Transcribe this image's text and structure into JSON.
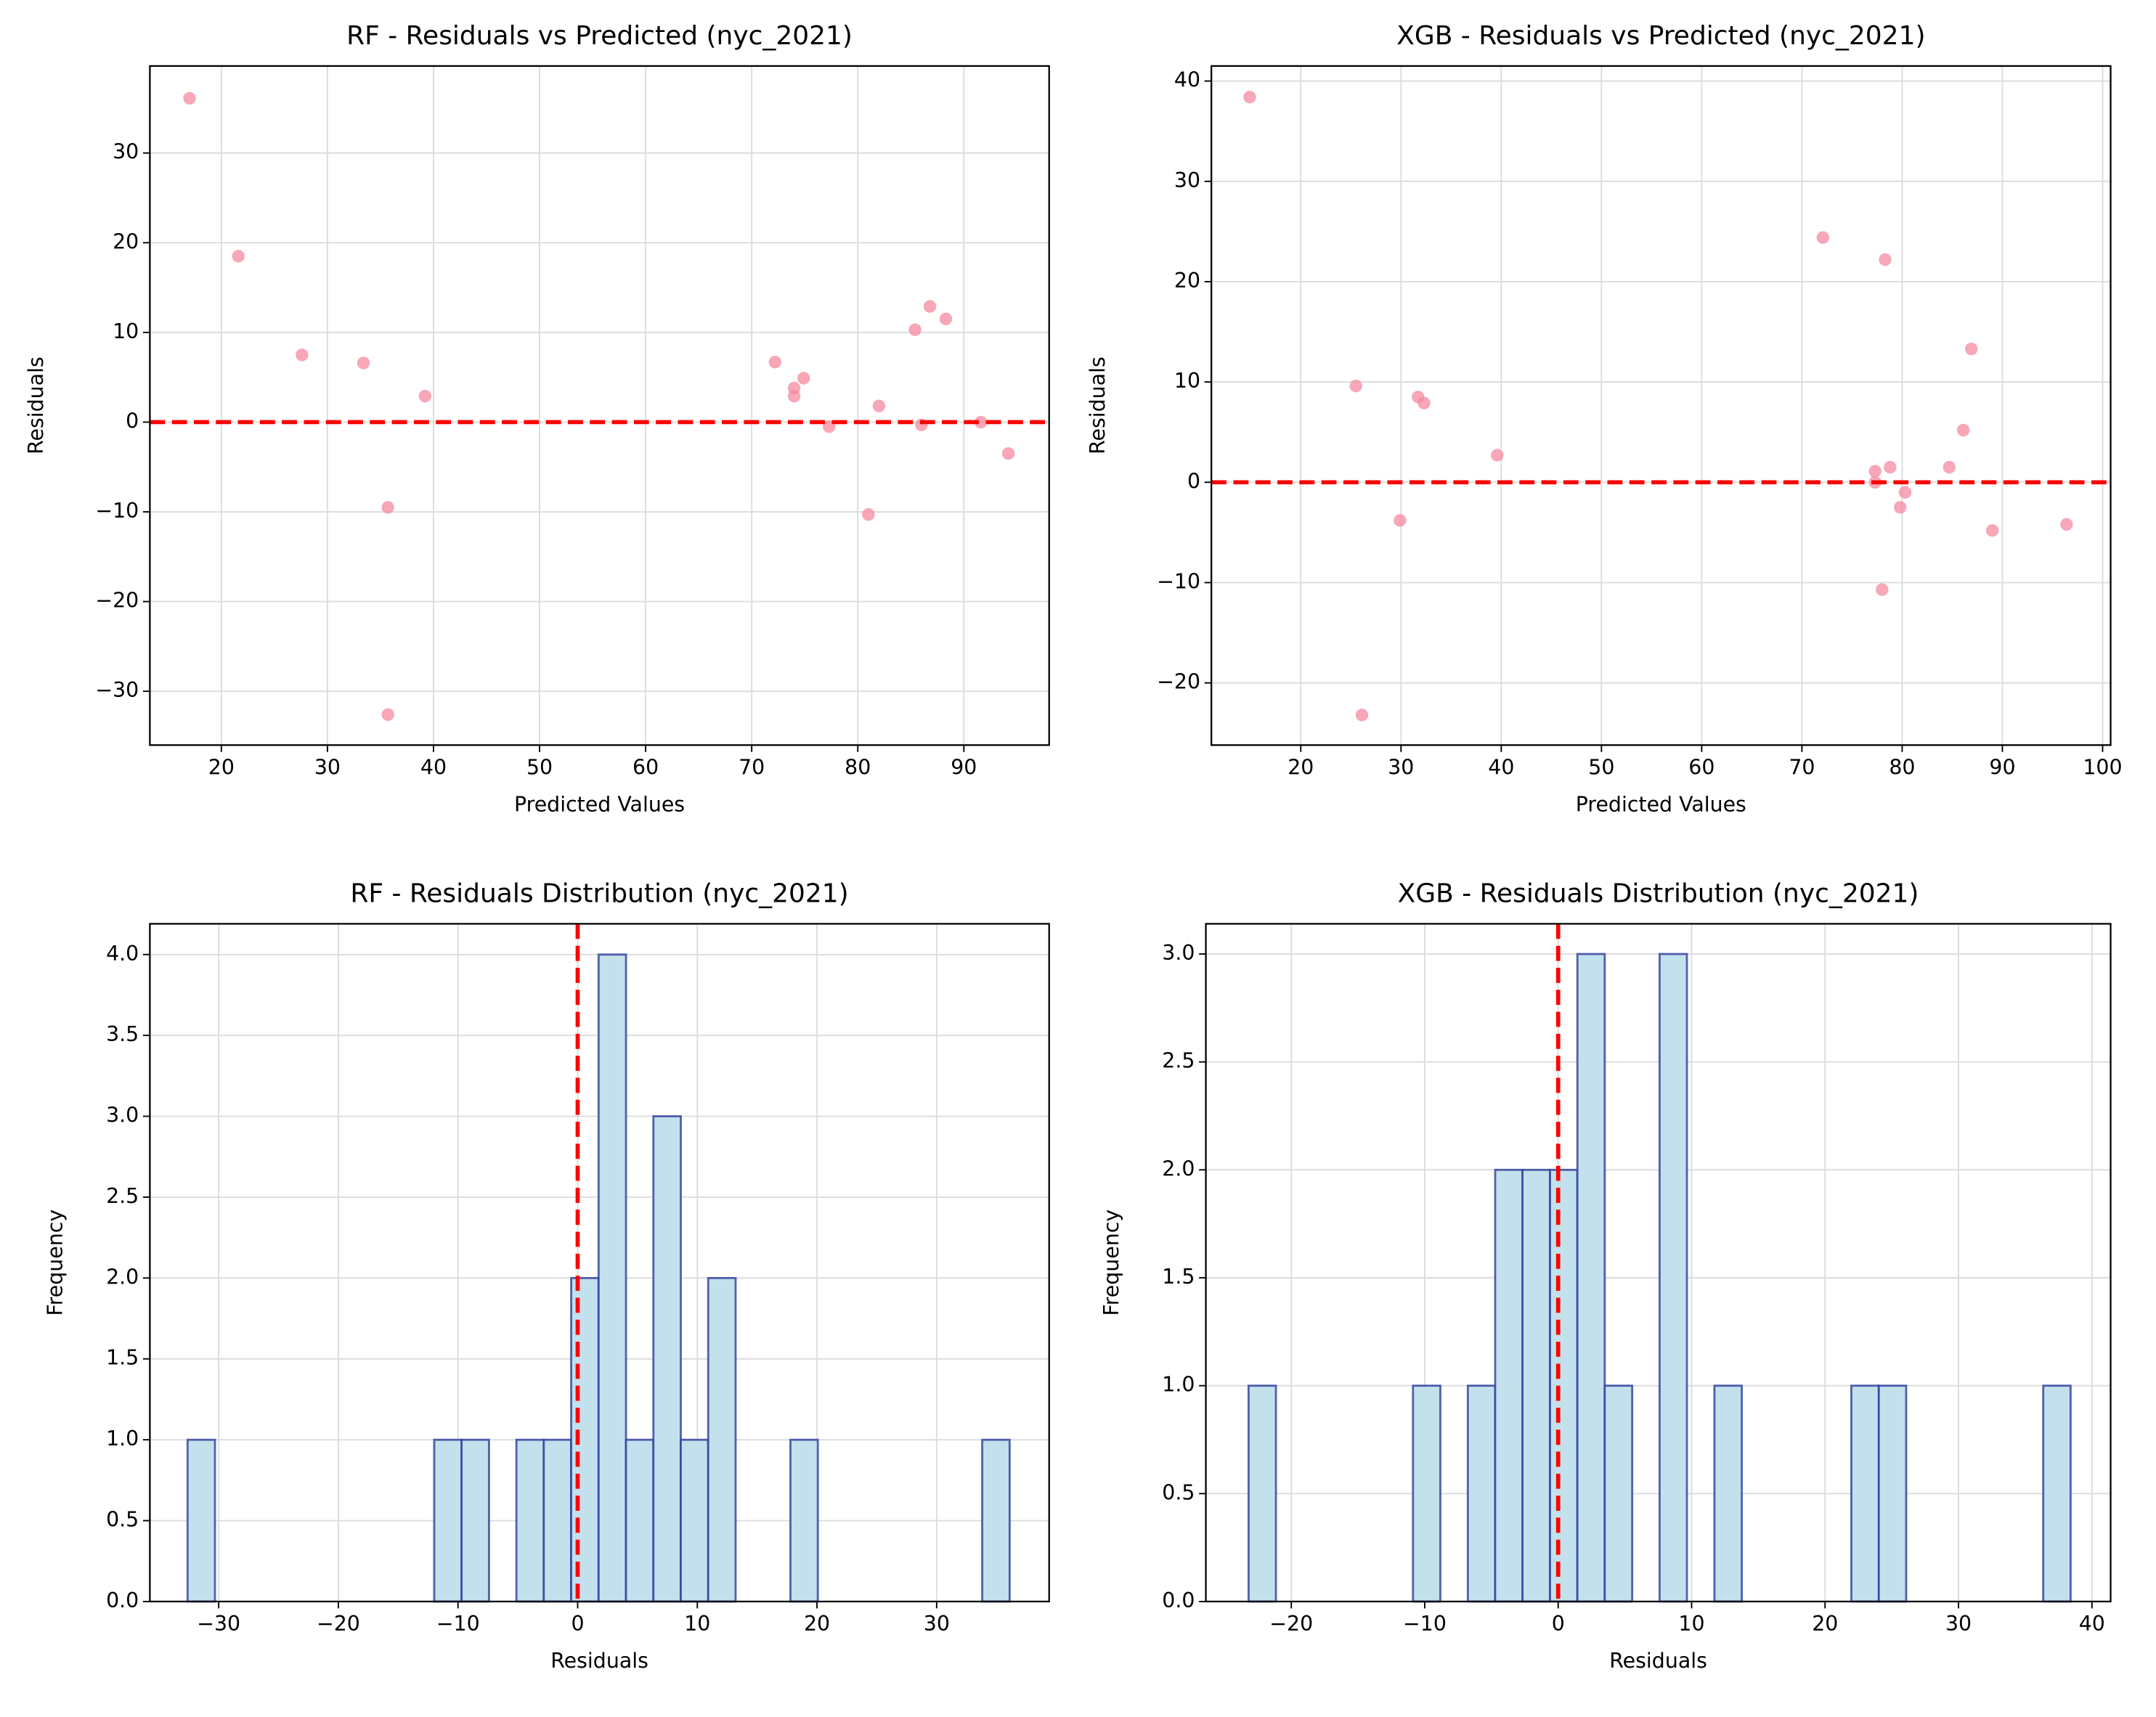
{
  "chart_data": [
    {
      "type": "scatter",
      "title": "RF - Residuals vs Predicted (nyc_2021)",
      "xlabel": "Predicted Values",
      "ylabel": "Residuals",
      "x": [
        17.0,
        21.6,
        27.6,
        33.4,
        39.2,
        35.7,
        35.7,
        72.2,
        74.0,
        74.0,
        74.9,
        77.3,
        82.0,
        81.0,
        86.0,
        85.4,
        86.8,
        88.3,
        91.6,
        94.2
      ],
      "values": [
        36.1,
        18.5,
        7.5,
        6.6,
        2.9,
        -9.5,
        -32.6,
        6.7,
        3.8,
        2.9,
        4.9,
        -0.5,
        1.8,
        -10.3,
        -0.3,
        10.3,
        12.9,
        11.5,
        0.0,
        -3.5
      ],
      "color": "#f4899f",
      "hline": 0,
      "line_color": "#ff0000",
      "xlim": [
        13.26,
        98.04
      ],
      "ylim": [
        -36.0,
        39.7
      ],
      "xticks": [
        20,
        30,
        40,
        50,
        60,
        70,
        80,
        90
      ],
      "yticks": [
        {
          "value": -30,
          "label": "−30"
        },
        {
          "value": -20,
          "label": "−20"
        },
        {
          "value": -10,
          "label": "−10"
        },
        0,
        10,
        20,
        30
      ],
      "grid": true
    },
    {
      "type": "scatter",
      "title": "XGB - Residuals vs Predicted (nyc_2021)",
      "xlabel": "Predicted Values",
      "ylabel": "Residuals",
      "x": [
        14.9,
        25.5,
        26.1,
        29.9,
        31.7,
        32.3,
        39.6,
        72.1,
        78.3,
        77.3,
        77.3,
        78.8,
        80.3,
        79.8,
        78.0,
        84.7,
        86.1,
        86.9,
        89.0,
        96.4
      ],
      "values": [
        38.4,
        9.6,
        -23.2,
        -3.8,
        8.5,
        7.9,
        2.7,
        24.4,
        22.2,
        1.1,
        0.0,
        1.5,
        -1.0,
        -2.5,
        -10.7,
        1.5,
        5.2,
        13.3,
        -4.8,
        -4.2
      ],
      "color": "#f4899f",
      "hline": 0,
      "line_color": "#ff0000",
      "xlim": [
        11.08,
        100.8
      ],
      "ylim": [
        -26.2,
        41.5
      ],
      "xticks": [
        20,
        30,
        40,
        50,
        60,
        70,
        80,
        90,
        100
      ],
      "yticks": [
        {
          "value": -20,
          "label": "−20"
        },
        {
          "value": -10,
          "label": "−10"
        },
        0,
        10,
        20,
        30,
        40
      ],
      "grid": true
    },
    {
      "type": "histogram",
      "title": "RF - Residuals Distribution (nyc_2021)",
      "xlabel": "Residuals",
      "ylabel": "Frequency",
      "bins": [
        -32.6,
        -30.31,
        -28.02,
        -25.73,
        -23.44,
        -21.15,
        -18.86,
        -16.57,
        -14.28,
        -11.99,
        -9.7,
        -7.41,
        -5.12,
        -2.83,
        -0.54,
        1.75,
        4.04,
        6.33,
        8.62,
        10.91,
        13.2,
        15.49,
        17.78,
        20.07,
        22.36,
        24.65,
        26.94,
        29.23,
        31.52,
        33.81,
        36.1
      ],
      "values": [
        1,
        0,
        0,
        0,
        0,
        0,
        0,
        0,
        0,
        1,
        1,
        0,
        1,
        1,
        2,
        4,
        1,
        3,
        1,
        2,
        0,
        0,
        1,
        0,
        0,
        0,
        0,
        0,
        0,
        1
      ],
      "color": "#c3e1ec",
      "edge_color": "#2e3c9c",
      "vline": 0,
      "line_color": "#ff0000",
      "xlim": [
        -35.75,
        39.4
      ],
      "ylim": [
        0,
        4.19
      ],
      "xticks": [
        {
          "value": -30,
          "label": "−30"
        },
        {
          "value": -20,
          "label": "−20"
        },
        {
          "value": -10,
          "label": "−10"
        },
        0,
        10,
        20,
        30
      ],
      "yticks": [
        {
          "value": 0,
          "label": "0.0"
        },
        0.5,
        {
          "value": 1,
          "label": "1.0"
        },
        1.5,
        {
          "value": 2,
          "label": "2.0"
        },
        2.5,
        {
          "value": 3,
          "label": "3.0"
        },
        3.5,
        {
          "value": 4,
          "label": "4.0"
        }
      ],
      "grid": true
    },
    {
      "type": "histogram",
      "title": "XGB - Residuals Distribution (nyc_2021)",
      "xlabel": "Residuals",
      "ylabel": "Frequency",
      "bins": [
        -23.2,
        -21.15,
        -19.09,
        -17.04,
        -14.99,
        -12.93,
        -10.88,
        -8.83,
        -6.77,
        -4.72,
        -2.67,
        -0.61,
        1.44,
        3.49,
        5.55,
        7.6,
        9.65,
        11.71,
        13.76,
        15.81,
        17.87,
        19.92,
        21.97,
        24.03,
        26.08,
        28.13,
        30.19,
        32.24,
        34.29,
        36.35,
        38.4
      ],
      "values": [
        1,
        0,
        0,
        0,
        0,
        0,
        1,
        0,
        1,
        2,
        2,
        2,
        3,
        1,
        0,
        3,
        0,
        1,
        0,
        0,
        0,
        0,
        1,
        1,
        0,
        0,
        0,
        0,
        0,
        1
      ],
      "color": "#c3e1ec",
      "edge_color": "#2e3c9c",
      "vline": 0,
      "line_color": "#ff0000",
      "xlim": [
        -26.4,
        41.4
      ],
      "ylim": [
        0,
        3.14
      ],
      "xticks": [
        {
          "value": -20,
          "label": "−20"
        },
        {
          "value": -10,
          "label": "−10"
        },
        0,
        10,
        20,
        30,
        40
      ],
      "yticks": [
        {
          "value": 0,
          "label": "0.0"
        },
        0.5,
        {
          "value": 1,
          "label": "1.0"
        },
        1.5,
        {
          "value": 2,
          "label": "2.0"
        },
        2.5,
        {
          "value": 3,
          "label": "3.0"
        }
      ],
      "grid": true
    }
  ]
}
